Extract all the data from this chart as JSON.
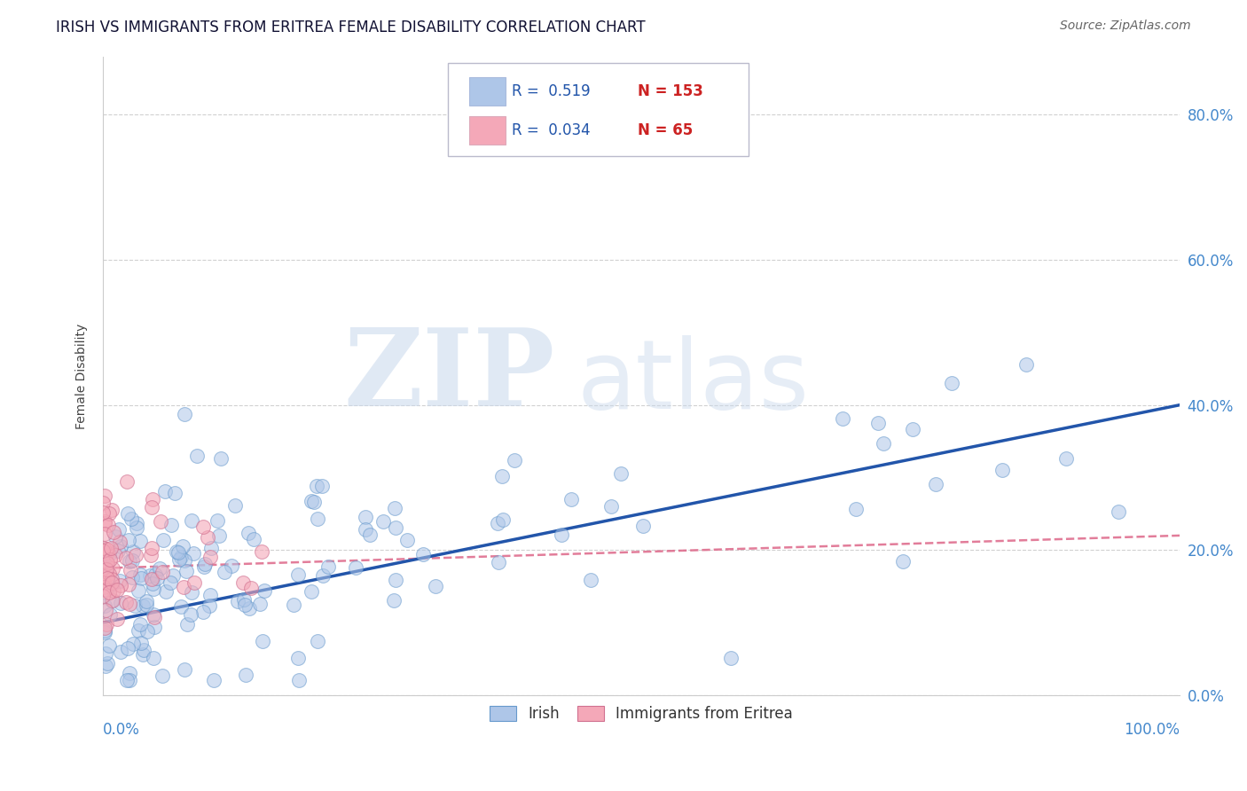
{
  "title": "IRISH VS IMMIGRANTS FROM ERITREA FEMALE DISABILITY CORRELATION CHART",
  "source": "Source: ZipAtlas.com",
  "ylabel": "Female Disability",
  "watermark_zip": "ZIP",
  "watermark_atlas": "atlas",
  "irish_R": 0.519,
  "irish_N": 153,
  "eritrea_R": 0.034,
  "eritrea_N": 65,
  "irish_color": "#aec6e8",
  "irish_edge_color": "#6699cc",
  "eritrea_color": "#f4a8b8",
  "eritrea_edge_color": "#d07090",
  "irish_line_color": "#2255aa",
  "eritrea_line_color": "#dd6688",
  "background_color": "#ffffff",
  "grid_color": "#cccccc",
  "ytick_color": "#4488cc",
  "title_color": "#111133",
  "source_color": "#666666",
  "ylabel_color": "#444444",
  "legend_R_color": "#2255aa",
  "legend_N_color": "#cc2222",
  "ylim_min": 0.0,
  "ylim_max": 0.88,
  "xlim_min": 0.0,
  "xlim_max": 1.0
}
